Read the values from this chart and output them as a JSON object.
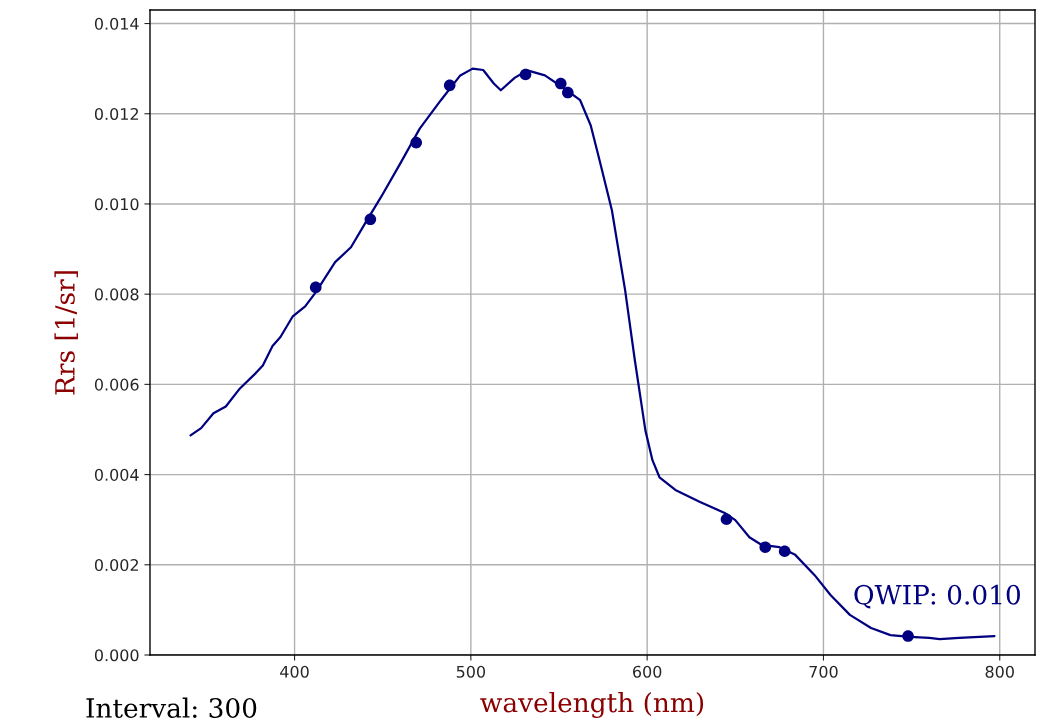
{
  "chart_data": {
    "type": "line",
    "xlabel": "wavelength (nm)",
    "ylabel": "Rrs [1/sr]",
    "annotations": [
      "QWIP: 0.010",
      "Interval: 300"
    ],
    "xlim": [
      318,
      820
    ],
    "xticks": [
      400,
      500,
      600,
      700,
      800
    ],
    "ylim": [
      0,
      0.0143
    ],
    "yticks": [
      {
        "value": 0,
        "label": "0.000"
      },
      {
        "value": 0.002,
        "label": "0.002"
      },
      {
        "value": 0.004,
        "label": "0.004"
      },
      {
        "value": 0.006,
        "label": "0.006"
      },
      {
        "value": 0.008,
        "label": "0.008"
      },
      {
        "value": 0.01,
        "label": "0.010"
      },
      {
        "value": 0.012,
        "label": "0.012"
      },
      {
        "value": 0.014,
        "label": "0.014"
      }
    ],
    "grid": true,
    "series": [
      {
        "color": "#000080",
        "x": [
          341,
          347,
          354,
          361,
          369,
          378,
          382,
          387.5,
          392,
          399,
          406,
          412,
          423,
          432,
          440,
          449,
          460,
          471,
          483,
          494,
          501,
          507,
          513,
          517,
          525,
          532,
          542,
          553,
          562,
          568,
          573,
          580,
          587.5,
          593,
          599,
          603,
          607,
          616,
          630,
          644,
          650,
          658,
          665,
          675,
          684,
          695,
          704,
          715,
          727,
          738,
          749,
          760,
          766,
          777,
          797
        ],
        "values": [
          0.00487,
          0.00503,
          0.00536,
          0.00551,
          0.00591,
          0.00625,
          0.00642,
          0.00685,
          0.00705,
          0.00751,
          0.00773,
          0.00804,
          0.00871,
          0.00904,
          0.00957,
          0.01015,
          0.0109,
          0.01167,
          0.0123,
          0.01285,
          0.013,
          0.01297,
          0.01267,
          0.01252,
          0.0128,
          0.01296,
          0.01285,
          0.01256,
          0.0123,
          0.01174,
          0.01097,
          0.00986,
          0.00809,
          0.00654,
          0.00498,
          0.00432,
          0.00394,
          0.00366,
          0.00339,
          0.00315,
          0.00299,
          0.00261,
          0.00244,
          0.00239,
          0.00222,
          0.00177,
          0.00133,
          0.00089,
          0.0006,
          0.00044,
          0.0004,
          0.00038,
          0.00035,
          0.00038,
          0.00042
        ]
      },
      {
        "type": "scatter",
        "color": "#000080",
        "marker": "circle",
        "x": [
          412,
          443,
          469,
          488,
          531,
          551,
          555,
          645,
          667,
          678,
          748
        ],
        "values": [
          0.00815,
          0.00966,
          0.01136,
          0.01263,
          0.01287,
          0.01267,
          0.01247,
          0.00301,
          0.00239,
          0.0023,
          0.00042
        ]
      }
    ]
  }
}
